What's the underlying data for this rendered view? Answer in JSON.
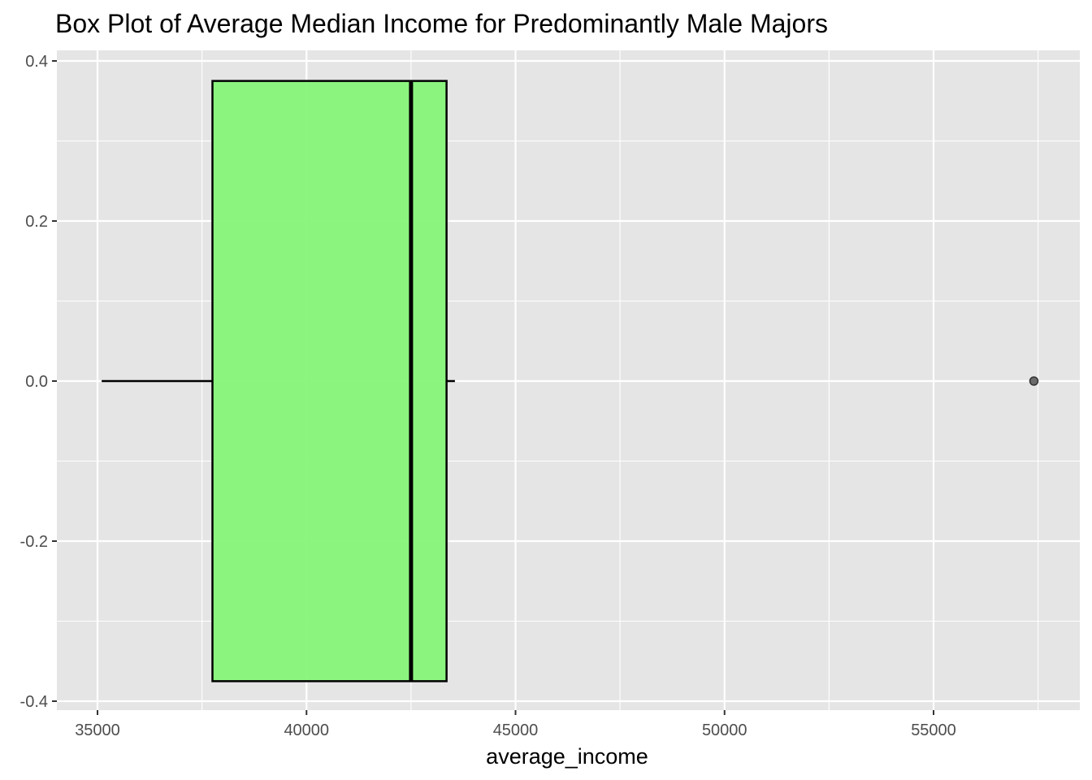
{
  "chart_data": {
    "type": "boxplot",
    "title": "Box Plot of Average Median Income for Predominantly Male Majors",
    "xlabel": "average_income",
    "ylabel": "",
    "orientation": "horizontal",
    "xlim": [
      34000,
      58500
    ],
    "ylim": [
      -0.41,
      0.4
    ],
    "x_ticks": [
      35000,
      40000,
      45000,
      50000,
      55000
    ],
    "x_tick_labels": [
      "35000",
      "40000",
      "45000",
      "50000",
      "55000"
    ],
    "y_ticks": [
      0.4,
      0.2,
      0.0,
      -0.2,
      -0.4
    ],
    "y_tick_labels": [
      "0.4",
      "0.2",
      "0.0",
      "-0.2",
      "-0.4"
    ],
    "grid": true,
    "box": {
      "whisker_low": 35100,
      "q1": 37750,
      "median": 42500,
      "q3": 43350,
      "whisker_high": 43550,
      "y_center": 0.0,
      "half_width": 0.375
    },
    "outliers": [
      {
        "x": 57400,
        "y": 0.0
      }
    ],
    "colors": {
      "panel_bg": "#e5e5e5",
      "grid": "#ffffff",
      "box_fill": "#86f479",
      "box_stroke": "#000000",
      "outlier": "#6b6b6b"
    }
  }
}
